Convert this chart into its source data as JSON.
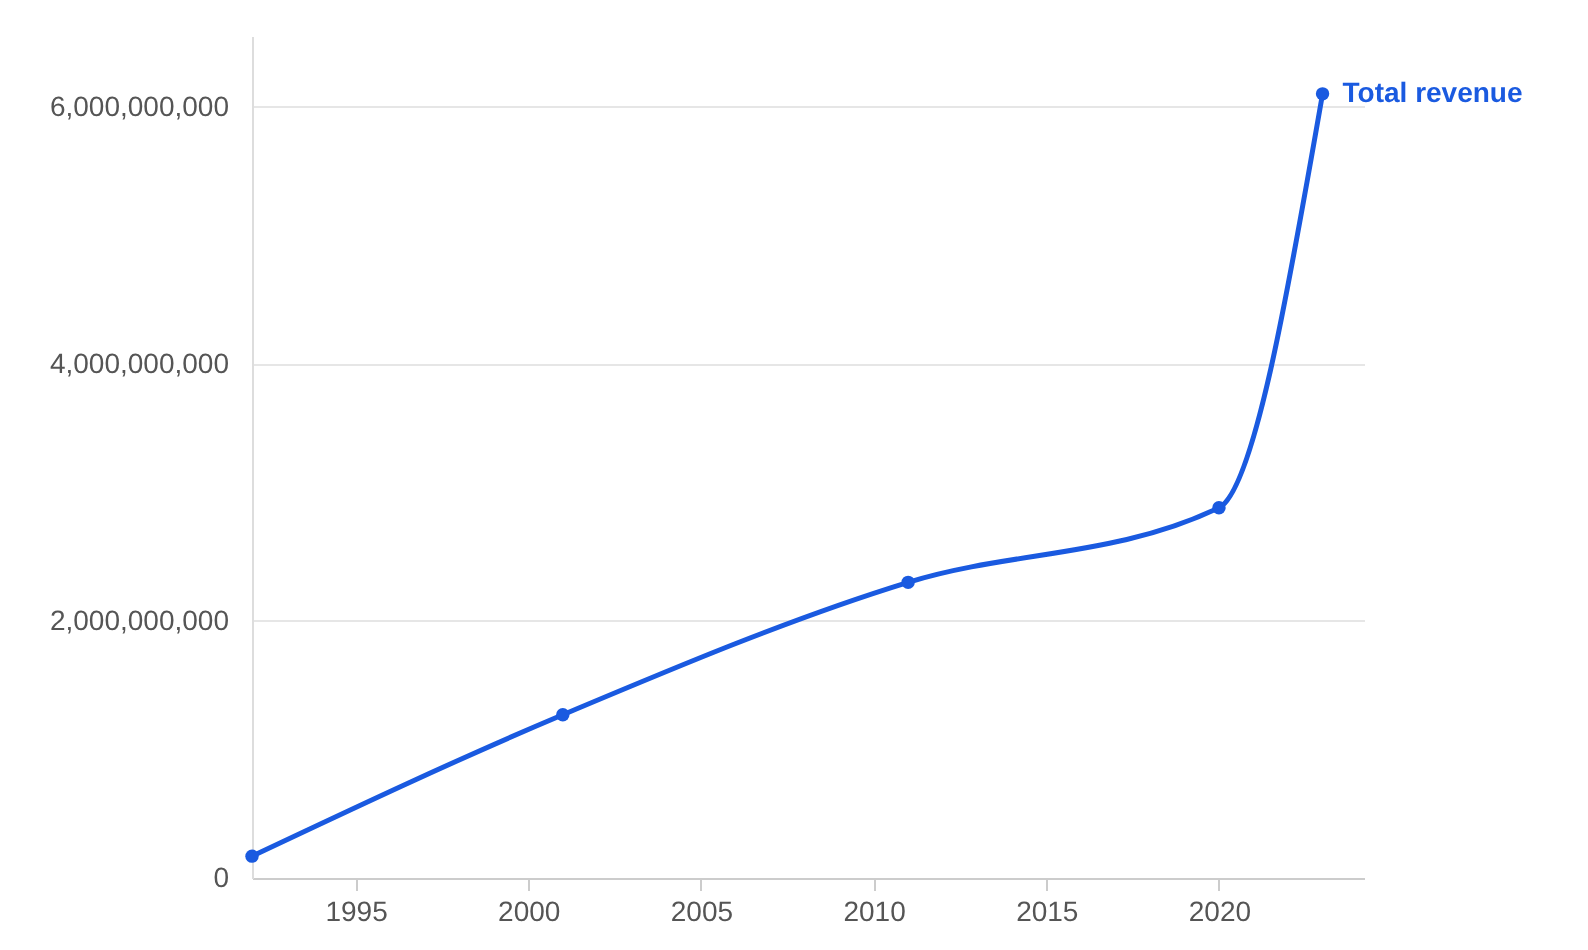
{
  "chart_data": {
    "type": "line",
    "x": [
      1992,
      2001,
      2011,
      2020,
      2023
    ],
    "series": [
      {
        "name": "Total revenue",
        "color": "#1a5ae0",
        "values": [
          170000000,
          1270000000,
          2300000000,
          2880000000,
          6100000000
        ]
      }
    ],
    "xlim": [
      1992,
      2024.2
    ],
    "xticks": [
      1995,
      2000,
      2005,
      2010,
      2015,
      2020
    ],
    "ylim": [
      0,
      6550000000
    ],
    "yticks": [
      0,
      {
        "value": 2000000000,
        "label": "2,000,000,000"
      },
      {
        "value": 4000000000,
        "label": "4,000,000,000"
      },
      {
        "value": 6000000000,
        "label": "6,000,000,000"
      }
    ],
    "grid": "y",
    "marker": "circle",
    "line_style": "solid",
    "legend": false
  }
}
